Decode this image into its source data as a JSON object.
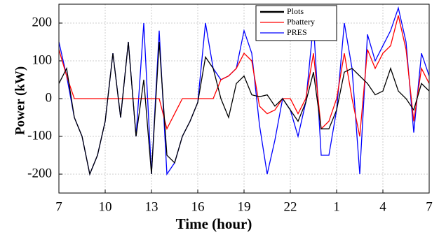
{
  "chart_data": {
    "type": "line",
    "x_label": "Time (hour)",
    "y_label": "Power (kW)",
    "x": [
      7,
      7.5,
      8,
      8.5,
      9,
      9.5,
      10,
      10.5,
      11,
      11.5,
      12,
      12.5,
      13,
      13.5,
      14,
      14.5,
      15,
      15.5,
      16,
      16.5,
      17,
      17.5,
      18,
      18.5,
      19,
      19.5,
      20,
      20.5,
      21,
      21.5,
      22,
      22.5,
      23,
      23.5,
      24,
      24.5,
      25,
      25.5,
      26,
      26.5,
      27,
      27.5,
      28,
      28.5,
      29,
      29.5,
      30,
      30.5,
      31
    ],
    "series": [
      {
        "name": "Plots",
        "color": "#000000",
        "values": [
          40,
          80,
          -50,
          -100,
          -200,
          -150,
          -60,
          120,
          -50,
          150,
          -100,
          50,
          -200,
          150,
          -150,
          -170,
          -100,
          -60,
          -10,
          110,
          80,
          0,
          -50,
          40,
          60,
          10,
          5,
          10,
          -20,
          0,
          -30,
          -60,
          -10,
          70,
          -80,
          -80,
          -30,
          70,
          80,
          60,
          40,
          10,
          20,
          80,
          20,
          0,
          -30,
          40,
          20
        ]
      },
      {
        "name": "Pbattery",
        "color": "#ff0000",
        "values": [
          130,
          60,
          0,
          0,
          0,
          0,
          0,
          0,
          0,
          0,
          0,
          0,
          0,
          0,
          -80,
          -40,
          0,
          0,
          0,
          0,
          0,
          50,
          60,
          80,
          120,
          100,
          -20,
          -40,
          -30,
          0,
          0,
          -40,
          0,
          120,
          -80,
          -60,
          0,
          120,
          0,
          -100,
          130,
          80,
          120,
          140,
          220,
          130,
          -60,
          80,
          40
        ]
      },
      {
        "name": "PRES",
        "color": "#0000ff",
        "values": [
          150,
          60,
          -50,
          -100,
          -200,
          -150,
          -60,
          120,
          -50,
          150,
          -100,
          200,
          -200,
          180,
          -200,
          -170,
          -100,
          -60,
          -10,
          200,
          80,
          50,
          60,
          80,
          180,
          120,
          -70,
          -200,
          -110,
          0,
          -30,
          -100,
          -10,
          200,
          -150,
          -150,
          -30,
          200,
          80,
          -200,
          170,
          100,
          140,
          180,
          240,
          150,
          -90,
          120,
          60
        ]
      }
    ],
    "xlim": [
      7,
      31
    ],
    "xticks": [
      7,
      10,
      13,
      16,
      19,
      22,
      {
        "value": 25,
        "label": "1"
      },
      {
        "value": 28,
        "label": "4"
      },
      {
        "value": 31,
        "label": "7"
      }
    ],
    "ylim": [
      -250,
      250
    ],
    "yticks": [
      -200,
      -100,
      0,
      100,
      200
    ],
    "grid": true,
    "legend": "top-right"
  }
}
